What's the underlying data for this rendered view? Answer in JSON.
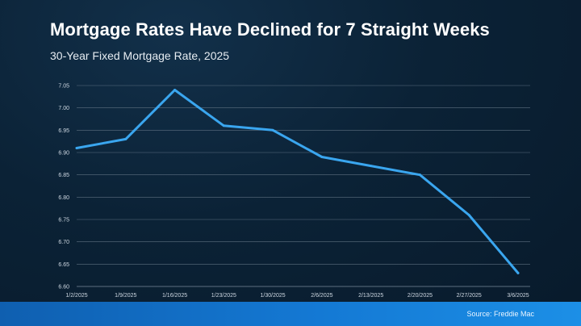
{
  "header": {
    "title": "Mortgage Rates Have Declined for 7 Straight Weeks",
    "subtitle": "30-Year Fixed Mortgage Rate, 2025"
  },
  "footer": {
    "source": "Source: Freddie Mac"
  },
  "colors": {
    "line": "#3aa6ef",
    "grid": "#5d6f80"
  },
  "chart_data": {
    "type": "line",
    "title": "Mortgage Rates Have Declined for 7 Straight Weeks",
    "subtitle": "30-Year Fixed Mortgage Rate, 2025",
    "xlabel": "",
    "ylabel": "",
    "categories": [
      "1/2/2025",
      "1/9/2025",
      "1/16/2025",
      "1/23/2025",
      "1/30/2025",
      "2/6/2025",
      "2/13/2025",
      "2/20/2025",
      "2/27/2025",
      "3/6/2025"
    ],
    "values": [
      6.91,
      6.93,
      7.04,
      6.96,
      6.95,
      6.89,
      6.87,
      6.85,
      6.76,
      6.63
    ],
    "ylim": [
      6.6,
      7.05
    ],
    "yticks": [
      "6.60",
      "6.65",
      "6.70",
      "6.75",
      "6.80",
      "6.85",
      "6.90",
      "6.95",
      "7.00",
      "7.05"
    ],
    "grid": true,
    "legend": "none"
  }
}
